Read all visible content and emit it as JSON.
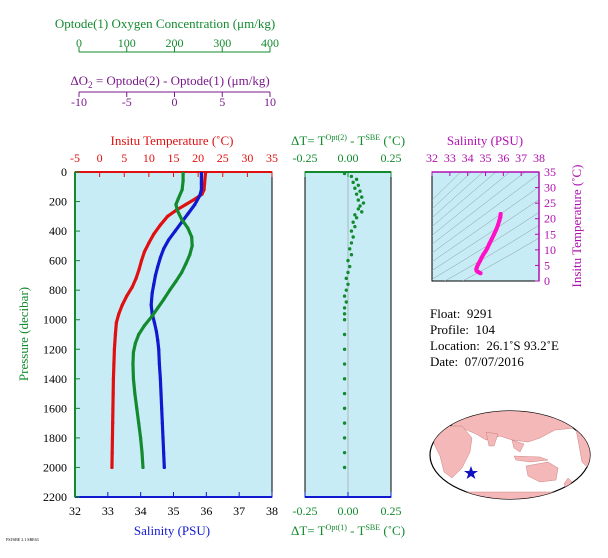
{
  "colors": {
    "oxygen": "#138a2e",
    "temperature": "#e01010",
    "salinity": "#1018d0",
    "delta_o2": "#7a1a8a",
    "ts": "#ff10c8",
    "panel_bg": "#c8ecf6",
    "delta_t_axis": "#138a2e",
    "sal_axis": "#b010b0",
    "land": "#f4b8b8",
    "ocean": "#ffffff",
    "float_marker": "#1010c0"
  },
  "main_panel": {
    "oxygen_axis": {
      "title": "Optode(1) Oxygen Concentration (μm/kg)",
      "ticks": [
        "0",
        "100",
        "200",
        "300",
        "400"
      ],
      "range": [
        0,
        400
      ]
    },
    "delta_o2_axis": {
      "title_prefix": "ΔO",
      "title_sub": "2",
      "title_rest": " = Optode(2) - Optode(1)    (μm/kg)",
      "ticks": [
        "-10",
        "-5",
        "0",
        "5",
        "10"
      ],
      "range": [
        -10,
        10
      ]
    },
    "temperature_axis": {
      "title": "Insitu Temperature (˚C)",
      "ticks": [
        "-5",
        "0",
        "5",
        "10",
        "15",
        "20",
        "25",
        "30",
        "35"
      ],
      "range": [
        -5,
        35
      ]
    },
    "salinity_axis": {
      "title": "Salinity (PSU)",
      "ticks": [
        "32",
        "33",
        "34",
        "35",
        "36",
        "37",
        "38"
      ],
      "range": [
        32,
        38
      ]
    },
    "pressure_axis": {
      "title": "Pressure (decibar)",
      "ticks": [
        "0",
        "200",
        "400",
        "600",
        "800",
        "1000",
        "1200",
        "1400",
        "1600",
        "1800",
        "2000",
        "2200"
      ],
      "range": [
        0,
        2200
      ]
    }
  },
  "delta_t_panel": {
    "top_label": {
      "prefix": "ΔT= T",
      "sup1": "Opt(2)",
      "mid": " - T",
      "sup2": "SBE",
      "suffix": " (˚C)"
    },
    "bottom_label": {
      "prefix": "ΔT= T",
      "sup1": "Opt(1)",
      "mid": " - T",
      "sup2": "SBE",
      "suffix": " (˚C)"
    },
    "top_ticks": [
      "-0.25",
      "0.00",
      "0.25"
    ],
    "bottom_ticks": [
      "-0.25",
      "0.00",
      "0.25"
    ],
    "range": [
      -0.25,
      0.25
    ]
  },
  "ts_panel": {
    "salinity_title": "Salinity (PSU)",
    "salinity_ticks": [
      "32",
      "33",
      "34",
      "35",
      "36",
      "37",
      "38"
    ],
    "salinity_range": [
      32,
      38
    ],
    "temp_title": "Insitu Temperature (˚C)",
    "temp_ticks": [
      "0",
      "5",
      "10",
      "15",
      "20",
      "25",
      "30",
      "35"
    ],
    "temp_range": [
      0,
      35
    ]
  },
  "info": {
    "float_label": "Float:",
    "float_value": "9291",
    "profile_label": "Profile:",
    "profile_value": "104",
    "location_label": "Location:",
    "location_value": "26.1˚S  93.2˚E",
    "date_label": "Date:",
    "date_value": "07/07/2016"
  },
  "footer_tag": "FSI/SBE 2.1 SBE63",
  "chart_data": [
    {
      "type": "line",
      "title": "",
      "y_axis": "Pressure (decibar)",
      "ylim": [
        0,
        2200
      ],
      "series": [
        {
          "name": "Insitu Temperature (˚C)",
          "axis": "temperature",
          "xlim": [
            -5,
            35
          ],
          "points": [
            [
              21.5,
              10
            ],
            [
              21.4,
              40
            ],
            [
              21.3,
              80
            ],
            [
              21.2,
              120
            ],
            [
              20.8,
              150
            ],
            [
              19.5,
              180
            ],
            [
              17.5,
              220
            ],
            [
              15.5,
              260
            ],
            [
              13.8,
              300
            ],
            [
              12.3,
              360
            ],
            [
              11.0,
              420
            ],
            [
              10.0,
              480
            ],
            [
              9.1,
              540
            ],
            [
              8.5,
              600
            ],
            [
              8.0,
              660
            ],
            [
              7.4,
              720
            ],
            [
              6.6,
              780
            ],
            [
              5.5,
              840
            ],
            [
              4.6,
              900
            ],
            [
              3.9,
              960
            ],
            [
              3.4,
              1020
            ],
            [
              3.2,
              1100
            ],
            [
              3.0,
              1200
            ],
            [
              2.9,
              1300
            ],
            [
              2.8,
              1400
            ],
            [
              2.75,
              1500
            ],
            [
              2.7,
              1600
            ],
            [
              2.65,
              1700
            ],
            [
              2.6,
              1800
            ],
            [
              2.55,
              1900
            ],
            [
              2.5,
              2000
            ]
          ]
        },
        {
          "name": "Salinity (PSU)",
          "axis": "salinity",
          "xlim": [
            32,
            38
          ],
          "points": [
            [
              35.85,
              10
            ],
            [
              35.85,
              40
            ],
            [
              35.85,
              80
            ],
            [
              35.85,
              120
            ],
            [
              35.8,
              160
            ],
            [
              35.65,
              220
            ],
            [
              35.45,
              280
            ],
            [
              35.25,
              340
            ],
            [
              35.05,
              400
            ],
            [
              34.85,
              460
            ],
            [
              34.7,
              520
            ],
            [
              34.6,
              580
            ],
            [
              34.52,
              640
            ],
            [
              34.45,
              700
            ],
            [
              34.4,
              760
            ],
            [
              34.35,
              820
            ],
            [
              34.32,
              900
            ],
            [
              34.35,
              960
            ],
            [
              34.42,
              1020
            ],
            [
              34.48,
              1080
            ],
            [
              34.52,
              1140
            ],
            [
              34.55,
              1200
            ],
            [
              34.57,
              1300
            ],
            [
              34.6,
              1400
            ],
            [
              34.62,
              1500
            ],
            [
              34.64,
              1600
            ],
            [
              34.66,
              1700
            ],
            [
              34.68,
              1800
            ],
            [
              34.7,
              1900
            ],
            [
              34.72,
              2000
            ]
          ]
        },
        {
          "name": "Optode(1) Oxygen Concentration (μm/kg)",
          "axis": "oxygen",
          "xlim": [
            0,
            400
          ],
          "points": [
            [
              218,
              10
            ],
            [
              218,
              60
            ],
            [
              216,
              120
            ],
            [
              208,
              180
            ],
            [
              203,
              220
            ],
            [
              206,
              260
            ],
            [
              215,
              320
            ],
            [
              228,
              380
            ],
            [
              236,
              440
            ],
            [
              237,
              500
            ],
            [
              232,
              560
            ],
            [
              224,
              620
            ],
            [
              215,
              680
            ],
            [
              203,
              740
            ],
            [
              190,
              800
            ],
            [
              178,
              860
            ],
            [
              165,
              920
            ],
            [
              152,
              980
            ],
            [
              137,
              1040
            ],
            [
              125,
              1100
            ],
            [
              118,
              1160
            ],
            [
              114,
              1220
            ],
            [
              113,
              1300
            ],
            [
              114,
              1400
            ],
            [
              117,
              1500
            ],
            [
              121,
              1600
            ],
            [
              125,
              1700
            ],
            [
              129,
              1800
            ],
            [
              132,
              1900
            ],
            [
              134,
              2000
            ]
          ]
        }
      ]
    },
    {
      "type": "scatter",
      "title": "",
      "x_axis": "ΔT (˚C)",
      "y_axis": "Pressure (decibar)",
      "xlim": [
        -0.25,
        0.25
      ],
      "ylim": [
        0,
        2200
      ],
      "series": [
        {
          "name": "",
          "points": [
            [
              -0.02,
              10
            ],
            [
              0.02,
              30
            ],
            [
              0.05,
              50
            ],
            [
              0.03,
              70
            ],
            [
              0.06,
              90
            ],
            [
              0.04,
              110
            ],
            [
              0.07,
              130
            ],
            [
              0.05,
              150
            ],
            [
              0.08,
              170
            ],
            [
              0.06,
              190
            ],
            [
              0.09,
              210
            ],
            [
              0.07,
              230
            ],
            [
              0.06,
              250
            ],
            [
              0.08,
              270
            ],
            [
              0.04,
              290
            ],
            [
              0.05,
              310
            ],
            [
              0.03,
              340
            ],
            [
              0.04,
              370
            ],
            [
              0.02,
              400
            ],
            [
              0.03,
              440
            ],
            [
              0.02,
              480
            ],
            [
              0.01,
              520
            ],
            [
              0.02,
              560
            ],
            [
              0.0,
              600
            ],
            [
              0.01,
              640
            ],
            [
              0.0,
              680
            ],
            [
              -0.01,
              720
            ],
            [
              0.0,
              760
            ],
            [
              -0.01,
              800
            ],
            [
              -0.02,
              840
            ],
            [
              -0.01,
              880
            ],
            [
              -0.02,
              920
            ],
            [
              -0.02,
              960
            ],
            [
              -0.02,
              1000
            ],
            [
              -0.02,
              1100
            ],
            [
              -0.02,
              1200
            ],
            [
              -0.02,
              1300
            ],
            [
              -0.02,
              1400
            ],
            [
              -0.02,
              1500
            ],
            [
              -0.02,
              1600
            ],
            [
              -0.02,
              1700
            ],
            [
              -0.02,
              1800
            ],
            [
              -0.02,
              1900
            ],
            [
              -0.02,
              2000
            ]
          ]
        }
      ]
    },
    {
      "type": "scatter",
      "title": "",
      "x_axis": "Salinity (PSU)",
      "y_axis": "Insitu Temperature (˚C)",
      "xlim": [
        32,
        38
      ],
      "ylim": [
        0,
        35
      ],
      "series": [
        {
          "name": "",
          "points": [
            [
              35.85,
              21.5
            ],
            [
              35.83,
              20.5
            ],
            [
              35.78,
              19.5
            ],
            [
              35.7,
              18
            ],
            [
              35.6,
              16.5
            ],
            [
              35.48,
              15
            ],
            [
              35.35,
              13.5
            ],
            [
              35.22,
              12
            ],
            [
              35.1,
              10.5
            ],
            [
              35.0,
              9.5
            ],
            [
              34.88,
              8.5
            ],
            [
              34.78,
              7.5
            ],
            [
              34.7,
              6.5
            ],
            [
              34.6,
              5.5
            ],
            [
              34.52,
              4.5
            ],
            [
              34.48,
              3.8
            ],
            [
              34.5,
              3.3
            ],
            [
              34.56,
              3.0
            ],
            [
              34.62,
              2.8
            ],
            [
              34.68,
              2.6
            ],
            [
              34.72,
              2.5
            ]
          ]
        }
      ]
    }
  ]
}
